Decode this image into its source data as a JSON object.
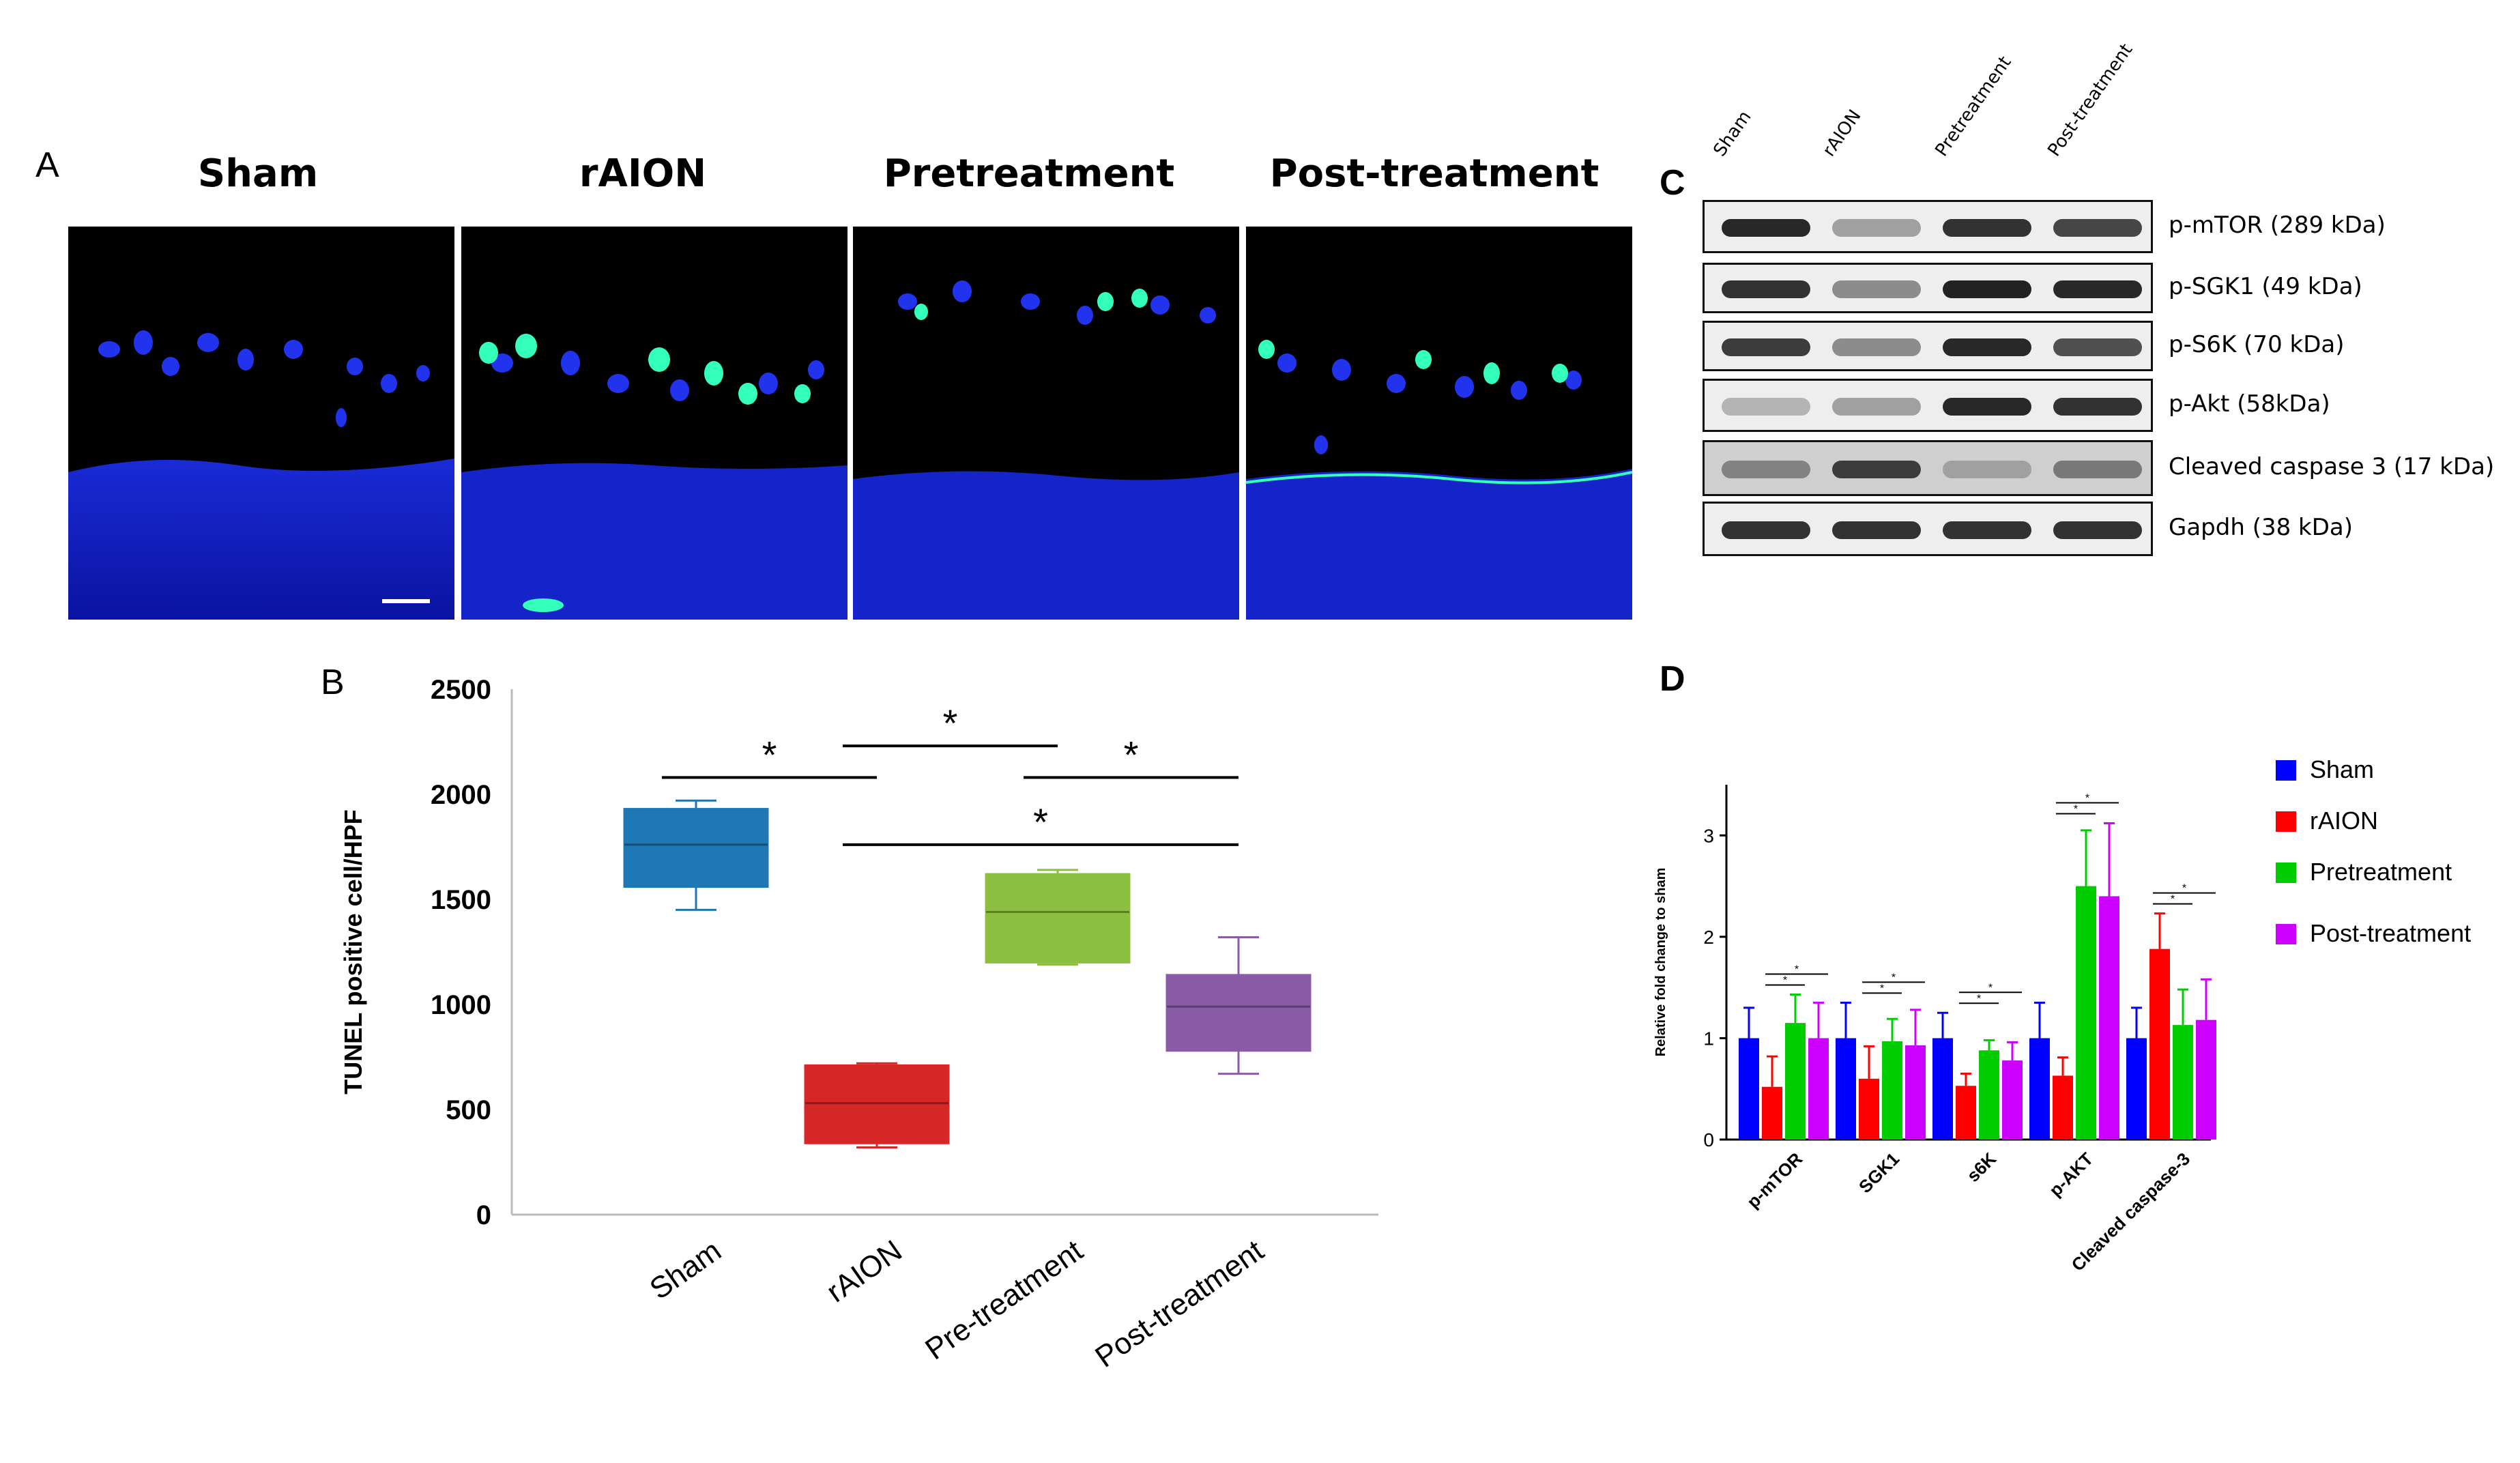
{
  "panel_a": {
    "letter": "A",
    "labels": [
      "Sham",
      "rAION",
      "Pretreatment",
      "Post-treatment"
    ]
  },
  "panel_b": {
    "letter": "B"
  },
  "panel_c": {
    "letter": "C",
    "lanes": [
      "Sham",
      "rAION",
      "Pretreatment",
      "Post-treatment"
    ],
    "bands": [
      {
        "label": "p-mTOR (289 kDa)",
        "intensity": [
          0.95,
          0.35,
          0.9,
          0.8
        ]
      },
      {
        "label": "p-SGK1 (49 kDa)",
        "intensity": [
          0.9,
          0.45,
          0.98,
          0.95
        ]
      },
      {
        "label": "p-S6K (70 kDa)",
        "intensity": [
          0.85,
          0.45,
          0.95,
          0.75
        ]
      },
      {
        "label": "p-Akt (58kDa)",
        "intensity": [
          0.25,
          0.35,
          0.95,
          0.9
        ]
      },
      {
        "label": "Cleaved caspase 3 (17 kDa)",
        "intensity": [
          0.5,
          0.85,
          0.35,
          0.55
        ]
      },
      {
        "label": "Gapdh (38 kDa)",
        "intensity": [
          0.9,
          0.9,
          0.9,
          0.9
        ]
      }
    ]
  },
  "panel_d": {
    "letter": "D"
  },
  "chart_data": [
    {
      "id": "B",
      "type": "box",
      "ylabel": "TUNEL positive cell/HPF",
      "ylim": [
        0,
        2500
      ],
      "yticks": [
        0,
        500,
        1000,
        1500,
        2000,
        2500
      ],
      "categories": [
        "Sham",
        "rAION",
        "Pre-treatment",
        "Post-treatment"
      ],
      "colors": [
        "#1f77b4",
        "#d62728",
        "#8cbf3f",
        "#8a5ca8"
      ],
      "boxes": [
        {
          "min": 1450,
          "q1": 1560,
          "median": 1760,
          "q3": 1930,
          "max": 1970
        },
        {
          "min": 320,
          "q1": 340,
          "median": 530,
          "q3": 710,
          "max": 720
        },
        {
          "min": 1190,
          "q1": 1200,
          "median": 1440,
          "q3": 1620,
          "max": 1640
        },
        {
          "min": 670,
          "q1": 780,
          "median": 990,
          "q3": 1140,
          "max": 1320
        }
      ],
      "significance": [
        {
          "from": 0,
          "to": 1,
          "label": "*",
          "y": 2080
        },
        {
          "from": 1,
          "to": 2,
          "label": "*",
          "y": 2230
        },
        {
          "from": 2,
          "to": 3,
          "label": "*",
          "y": 2080
        },
        {
          "from": 1,
          "to": 3,
          "label": "*",
          "y": 1760
        }
      ]
    },
    {
      "id": "D",
      "type": "bar",
      "ylabel": "Relative fold change to sham",
      "ylim": [
        0,
        3.5
      ],
      "yticks": [
        0,
        1,
        2,
        3
      ],
      "categories": [
        "p-mTOR",
        "SGK1",
        "s6K",
        "p-AKT",
        "Cleaved caspase-3"
      ],
      "series": [
        {
          "name": "Sham",
          "color": "#0000ff",
          "values": [
            1.0,
            1.0,
            1.0,
            1.0,
            1.0
          ],
          "errors": [
            0.3,
            0.35,
            0.25,
            0.35,
            0.3
          ]
        },
        {
          "name": "rAION",
          "color": "#ff0000",
          "values": [
            0.52,
            0.6,
            0.53,
            0.63,
            1.88
          ],
          "errors": [
            0.3,
            0.32,
            0.12,
            0.18,
            0.35
          ]
        },
        {
          "name": "Pretreatment",
          "color": "#00cc00",
          "values": [
            1.15,
            0.97,
            0.88,
            2.5,
            1.13
          ],
          "errors": [
            0.28,
            0.22,
            0.1,
            0.55,
            0.35
          ]
        },
        {
          "name": "Post-treatment",
          "color": "#cc00ff",
          "values": [
            1.0,
            0.93,
            0.78,
            2.4,
            1.18
          ],
          "errors": [
            0.35,
            0.35,
            0.18,
            0.72,
            0.4
          ]
        }
      ],
      "significance": [
        {
          "group": 0,
          "lines": [
            [
              1,
              2
            ],
            [
              1,
              3
            ]
          ],
          "label": "*"
        },
        {
          "group": 1,
          "lines": [
            [
              1,
              2
            ],
            [
              1,
              3
            ]
          ],
          "label": "*"
        },
        {
          "group": 2,
          "lines": [
            [
              1,
              2
            ],
            [
              1,
              3
            ]
          ],
          "label": "*"
        },
        {
          "group": 3,
          "lines": [
            [
              1,
              2
            ],
            [
              1,
              3
            ]
          ],
          "label": "*"
        },
        {
          "group": 4,
          "lines": [
            [
              1,
              2
            ],
            [
              1,
              3
            ]
          ],
          "label": "*"
        }
      ]
    }
  ]
}
